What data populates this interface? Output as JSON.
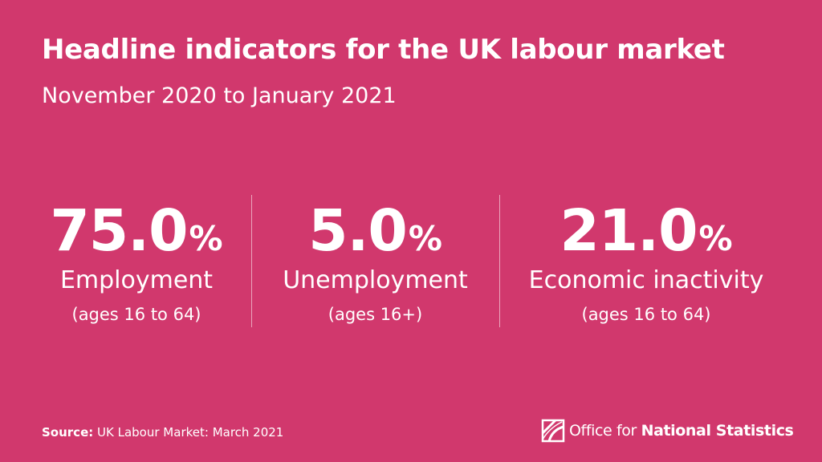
{
  "colors": {
    "background": "#d1386d",
    "text": "#ffffff"
  },
  "title": "Headline indicators for the UK labour market",
  "subtitle": "November 2020 to January 2021",
  "stats": [
    {
      "value": "75.0",
      "unit": "%",
      "label": "Employment",
      "sublabel": "(ages 16 to 64)"
    },
    {
      "value": "5.0",
      "unit": "%",
      "label": "Unemployment",
      "sublabel": "(ages 16+)"
    },
    {
      "value": "21.0",
      "unit": "%",
      "label": "Economic inactivity",
      "sublabel": "(ages 16 to 64)"
    }
  ],
  "source": {
    "key": "Source:",
    "text": "UK Labour Market: March 2021"
  },
  "logo": {
    "icon": "ons-logo-icon",
    "text_regular": "Office for ",
    "text_bold": "National Statistics"
  }
}
